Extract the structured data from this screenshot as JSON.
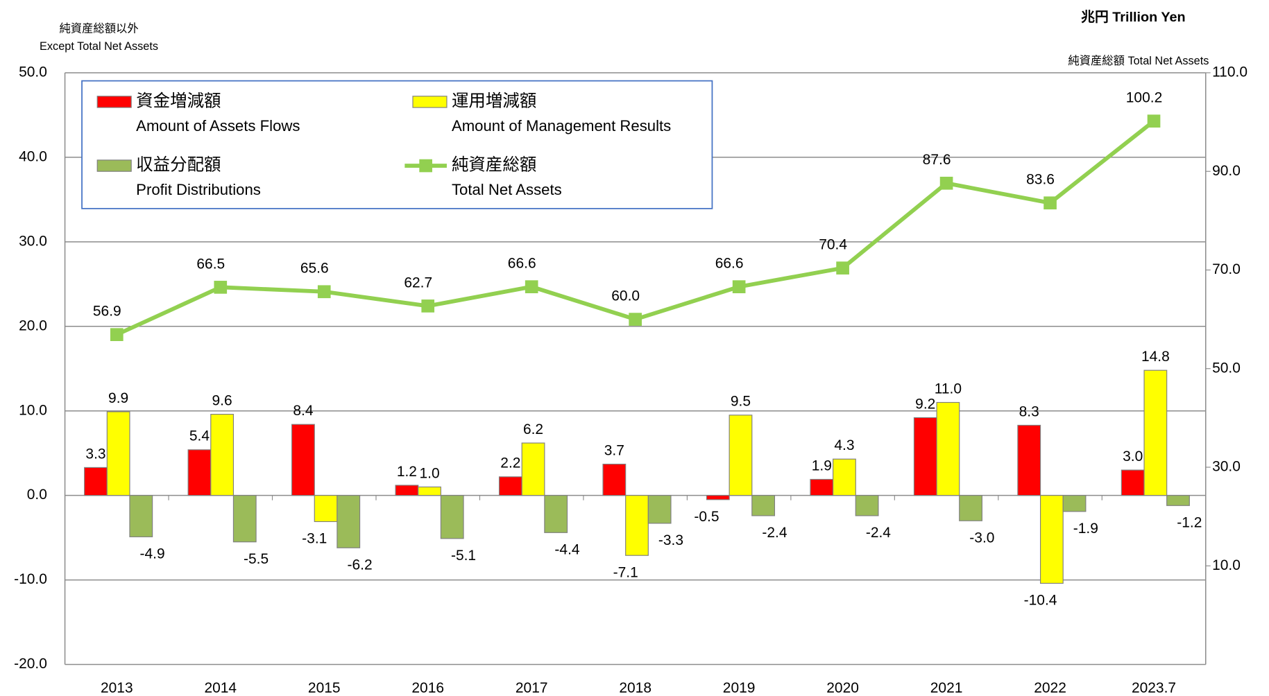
{
  "chart_data": {
    "type": "bar-line",
    "note_left": "純資産総額以外",
    "note_left_en": "Except Total Net Assets",
    "unit": "兆円 Trillion Yen",
    "note_right": "純資産総額 Total Net Assets",
    "categories": [
      "2013",
      "2014",
      "2015",
      "2016",
      "2017",
      "2018",
      "2019",
      "2020",
      "2021",
      "2022",
      "2023.7"
    ],
    "ylim": [
      -20,
      50
    ],
    "yticks": [
      {
        "value": -20,
        "label": "-20.0"
      },
      {
        "value": -10,
        "label": "-10.0"
      },
      {
        "value": 0,
        "label": "0.0"
      },
      {
        "value": 10,
        "label": "10.0"
      },
      {
        "value": 20,
        "label": "20.0"
      },
      {
        "value": 30,
        "label": "30.0"
      },
      {
        "value": 40,
        "label": "40.0"
      },
      {
        "value": 50,
        "label": "50.0"
      }
    ],
    "y2lim": [
      -10,
      110
    ],
    "y2ticks": [
      {
        "value": 10,
        "label": "10.0"
      },
      {
        "value": 30,
        "label": "30.0"
      },
      {
        "value": 50,
        "label": "50.0"
      },
      {
        "value": 70,
        "label": "70.0"
      },
      {
        "value": 90,
        "label": "90.0"
      },
      {
        "value": 110,
        "label": "110.0"
      }
    ],
    "grid": true,
    "series": [
      {
        "name": "資金増減額",
        "name_en": "Amount of Assets Flows",
        "type": "bar",
        "color": "#ff0000",
        "values": [
          3.3,
          5.4,
          8.4,
          1.2,
          2.2,
          3.7,
          -0.5,
          1.9,
          9.2,
          8.3,
          3.0
        ],
        "value_labels": [
          "3.3",
          "5.4",
          "8.4",
          "1.2",
          "2.2",
          "3.7",
          "-0.5",
          "1.9",
          "9.2",
          "8.3",
          "3.0"
        ]
      },
      {
        "name": "運用増減額",
        "name_en": "Amount of Management Results",
        "type": "bar",
        "color": "#ffff00",
        "values": [
          9.9,
          9.6,
          -3.1,
          1.0,
          6.2,
          -7.1,
          9.5,
          4.3,
          11.0,
          -10.4,
          14.8
        ],
        "value_labels": [
          "9.9",
          "9.6",
          "-3.1",
          "1.0",
          "6.2",
          "-7.1",
          "9.5",
          "4.3",
          "11.0",
          "-10.4",
          "14.8"
        ]
      },
      {
        "name": "収益分配額",
        "name_en": "Profit Distributions",
        "type": "bar",
        "color": "#9bbb59",
        "values": [
          -4.9,
          -5.5,
          -6.2,
          -5.1,
          -4.4,
          -3.3,
          -2.4,
          -2.4,
          -3.0,
          -1.9,
          -1.2
        ],
        "value_labels": [
          "-4.9",
          "-5.5",
          "-6.2",
          "-5.1",
          "-4.4",
          "-3.3",
          "-2.4",
          "-2.4",
          "-3.0",
          "-1.9",
          "-1.2"
        ]
      },
      {
        "name": "純資産総額",
        "name_en": "Total Net Assets",
        "type": "line",
        "axis": "y2",
        "color": "#92d050",
        "values": [
          56.9,
          66.5,
          65.6,
          62.7,
          66.6,
          60.0,
          66.6,
          70.4,
          87.6,
          83.6,
          100.2
        ],
        "value_labels": [
          "56.9",
          "66.5",
          "65.6",
          "62.7",
          "66.6",
          "60.0",
          "66.6",
          "70.4",
          "87.6",
          "83.6",
          "100.2"
        ]
      }
    ]
  }
}
